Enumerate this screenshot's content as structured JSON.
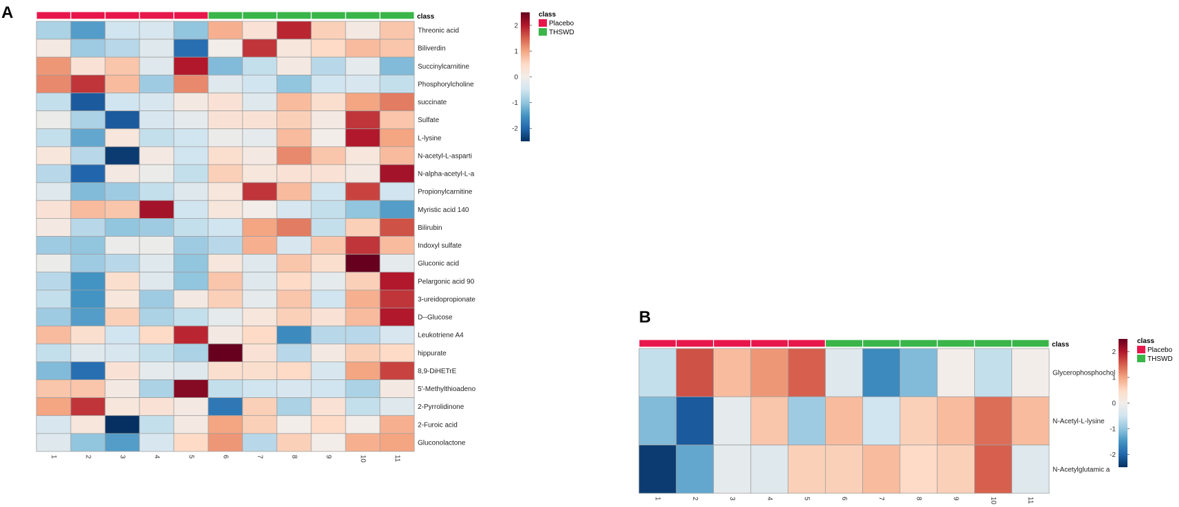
{
  "panels": {
    "a": {
      "label": "A"
    },
    "b": {
      "label": "B"
    }
  },
  "colors": {
    "placebo": "#e8174b",
    "thswd": "#3ab54a",
    "cell_border": "#a0a0a0",
    "scale": [
      "#053061",
      "#2166ac",
      "#4393c3",
      "#92c5de",
      "#d1e5f0",
      "#f2ede9",
      "#fddbc7",
      "#f4a582",
      "#d6604d",
      "#b2182b",
      "#67001f"
    ]
  },
  "chart_data": [
    {
      "type": "heatmap",
      "panel": "A",
      "annotation_label": "class",
      "legend": {
        "title": "class",
        "items": [
          "Placebo",
          "THSWD"
        ]
      },
      "colorbar": {
        "ticks": [
          2,
          1,
          0,
          -1,
          -2
        ],
        "tick_labels": [
          "2",
          "1",
          "0",
          "-1",
          "-2"
        ],
        "range": [
          -2.5,
          2.5
        ]
      },
      "samples": [
        "1",
        "2",
        "3",
        "4",
        "5",
        "6",
        "7",
        "8",
        "9",
        "10",
        "11"
      ],
      "sample_class": [
        "Placebo",
        "Placebo",
        "Placebo",
        "Placebo",
        "Placebo",
        "THSWD",
        "THSWD",
        "THSWD",
        "THSWD",
        "THSWD",
        "THSWD"
      ],
      "features": [
        "Threonic acid",
        "Biliverdin",
        "Succinylcarnitine",
        "Phosphorylcholine",
        "succinate",
        "Sulfate",
        "L-lysine",
        "N-acetyl-L-asparti",
        "N-alpha-acetyl-L-a",
        "Propionylcarnitine",
        "Myristic acid 140",
        "Bilirubin",
        "Indoxyl sulfate",
        "Gluconic acid",
        "Pelargonic acid 90",
        "3-ureidopropionate",
        "D--Glucose",
        "Leukotriene A4",
        "hippurate",
        "8,9-DiHETrE",
        "5'-Methylthioadeno",
        "2-Pyrrolidinone",
        "2-Furoic acid",
        "Gluconolactone"
      ],
      "values": [
        [
          -0.8,
          -1.4,
          -0.5,
          -0.4,
          -1.0,
          0.9,
          0.3,
          1.9,
          0.6,
          0.1,
          0.7
        ],
        [
          0.1,
          -0.9,
          -0.7,
          -0.3,
          -1.9,
          0.0,
          1.8,
          0.2,
          0.5,
          0.8,
          0.7
        ],
        [
          1.1,
          0.3,
          0.7,
          -0.3,
          2.0,
          -1.1,
          -0.6,
          0.1,
          -0.7,
          -0.2,
          -1.1
        ],
        [
          1.2,
          1.8,
          0.8,
          -0.9,
          1.2,
          -0.3,
          -0.5,
          -1.0,
          -0.5,
          -0.4,
          -0.6
        ],
        [
          -0.6,
          -2.1,
          -0.5,
          -0.4,
          0.1,
          0.3,
          -0.3,
          0.8,
          0.4,
          1.0,
          1.3
        ],
        [
          -0.1,
          -0.8,
          -2.1,
          -0.4,
          -0.2,
          0.3,
          0.3,
          0.6,
          0.1,
          1.8,
          0.7
        ],
        [
          -0.6,
          -1.3,
          0.2,
          -0.6,
          -0.5,
          -0.1,
          -0.2,
          0.8,
          0.0,
          2.0,
          1.0
        ],
        [
          0.2,
          -0.7,
          -2.4,
          0.1,
          -0.5,
          0.4,
          0.1,
          1.2,
          0.7,
          0.2,
          0.8
        ],
        [
          -0.7,
          -2.0,
          0.1,
          -0.1,
          -0.6,
          0.6,
          0.2,
          0.3,
          0.3,
          0.1,
          2.1
        ],
        [
          -0.3,
          -1.1,
          -0.9,
          -0.6,
          -0.3,
          0.2,
          1.8,
          0.8,
          -0.5,
          1.7,
          -0.5
        ],
        [
          0.3,
          0.8,
          0.7,
          2.1,
          -0.5,
          0.2,
          0.0,
          -0.4,
          -0.6,
          -1.0,
          -1.4
        ],
        [
          0.1,
          -0.7,
          -1.0,
          -0.9,
          -0.6,
          -0.5,
          1.0,
          1.3,
          -0.6,
          0.6,
          1.6
        ],
        [
          -0.9,
          -1.0,
          -0.1,
          -0.1,
          -0.9,
          -0.7,
          0.9,
          -0.4,
          0.7,
          1.8,
          0.8
        ],
        [
          -0.1,
          -0.9,
          -0.7,
          -0.3,
          -1.0,
          0.2,
          -0.3,
          0.7,
          0.4,
          2.5,
          -0.2
        ],
        [
          -0.7,
          -1.5,
          0.4,
          -0.3,
          -1.0,
          0.7,
          -0.3,
          0.5,
          -0.2,
          0.6,
          2.0
        ],
        [
          -0.6,
          -1.5,
          0.2,
          -0.9,
          0.1,
          0.6,
          -0.2,
          0.7,
          -0.5,
          0.9,
          1.8
        ],
        [
          -0.9,
          -1.4,
          0.6,
          -0.8,
          -0.6,
          -0.2,
          0.2,
          0.6,
          0.3,
          0.8,
          2.0
        ],
        [
          0.8,
          0.4,
          -0.5,
          0.5,
          1.9,
          0.1,
          0.5,
          -1.6,
          -0.7,
          -0.7,
          -0.4
        ],
        [
          -0.6,
          -0.3,
          -0.4,
          -0.6,
          -0.8,
          2.5,
          0.3,
          -0.7,
          0.1,
          0.6,
          0.5
        ],
        [
          -1.1,
          -1.9,
          0.3,
          -0.2,
          -0.3,
          0.4,
          0.4,
          0.5,
          -0.4,
          1.0,
          1.7
        ],
        [
          0.7,
          0.7,
          0.1,
          -0.8,
          2.3,
          -0.6,
          -0.5,
          -0.4,
          -0.5,
          -0.8,
          0.1
        ],
        [
          1.0,
          1.8,
          0.2,
          0.3,
          0.1,
          -1.8,
          0.6,
          -0.8,
          0.3,
          -0.6,
          -0.3
        ],
        [
          -0.4,
          0.2,
          -2.5,
          -0.6,
          0.1,
          1.0,
          0.6,
          0.0,
          0.5,
          0.0,
          0.9
        ],
        [
          -0.3,
          -1.0,
          -1.4,
          -0.4,
          0.5,
          1.1,
          -0.7,
          0.6,
          0.0,
          0.9,
          1.0
        ]
      ]
    },
    {
      "type": "heatmap",
      "panel": "B",
      "annotation_label": "class",
      "legend": {
        "title": "class",
        "items": [
          "Placebo",
          "THSWD"
        ]
      },
      "colorbar": {
        "ticks": [
          2,
          1,
          0,
          -1,
          -2
        ],
        "tick_labels": [
          "2",
          "1",
          "0",
          "-1",
          "-2"
        ],
        "range": [
          -2.5,
          2.5
        ]
      },
      "samples": [
        "1",
        "2",
        "3",
        "4",
        "5",
        "6",
        "7",
        "8",
        "9",
        "10",
        "11"
      ],
      "sample_class": [
        "Placebo",
        "Placebo",
        "Placebo",
        "Placebo",
        "Placebo",
        "THSWD",
        "THSWD",
        "THSWD",
        "THSWD",
        "THSWD",
        "THSWD"
      ],
      "features": [
        "Glycerophosphochol",
        "N-Acetyl-L-lysine",
        "N-Acetylglutamic a"
      ],
      "values": [
        [
          -0.6,
          1.6,
          0.8,
          1.1,
          1.5,
          -0.3,
          -1.6,
          -1.1,
          0.0,
          -0.6,
          0.0
        ],
        [
          -1.1,
          -2.1,
          -0.2,
          0.7,
          -0.9,
          0.8,
          -0.5,
          0.6,
          0.8,
          1.4,
          0.8
        ],
        [
          -2.4,
          -1.3,
          -0.2,
          -0.3,
          0.6,
          0.6,
          0.8,
          0.5,
          0.6,
          1.5,
          -0.3
        ]
      ]
    }
  ]
}
